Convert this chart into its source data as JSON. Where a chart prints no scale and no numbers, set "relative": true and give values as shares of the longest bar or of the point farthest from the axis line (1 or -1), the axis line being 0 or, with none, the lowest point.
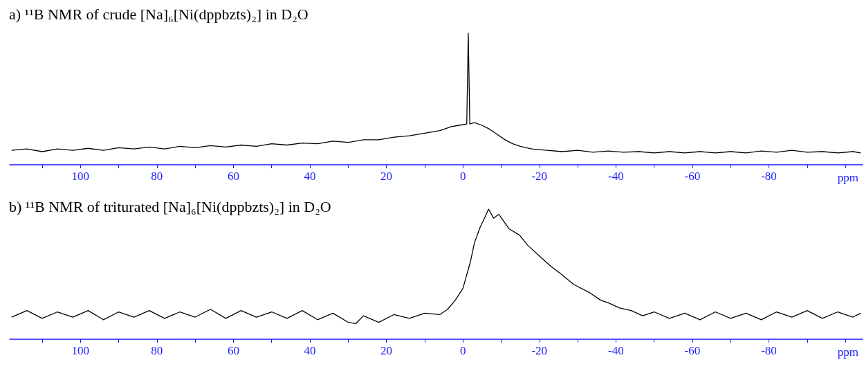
{
  "chart_data": [
    {
      "type": "line",
      "title": "a) ¹¹B NMR of crude [Na]₆[Ni(dppbzts)₂] in D₂O",
      "xlabel": "ppm",
      "relative": true,
      "xlim": [
        118.5,
        -104.5
      ],
      "xticks": [
        {
          "value": 110,
          "label": null
        },
        100,
        {
          "value": 90,
          "label": null
        },
        80,
        {
          "value": 70,
          "label": null
        },
        60,
        {
          "value": 50,
          "label": null
        },
        40,
        {
          "value": 30,
          "label": null
        },
        20,
        {
          "value": 10,
          "label": null
        },
        0,
        {
          "value": -10,
          "label": null
        },
        -20,
        {
          "value": -30,
          "label": null
        },
        -40,
        {
          "value": -50,
          "label": null
        },
        -60,
        {
          "value": -70,
          "label": null
        },
        -80,
        {
          "value": -90,
          "label": null
        },
        {
          "value": -100,
          "label": null
        }
      ],
      "series": [
        {
          "color": "#000000",
          "x": [
            118,
            114,
            110,
            106,
            102,
            98,
            94,
            90,
            86,
            82,
            78,
            74,
            70,
            66,
            62,
            58,
            54,
            50,
            46,
            42,
            38,
            34,
            30,
            26,
            22,
            18,
            14,
            10,
            6,
            3,
            1,
            -1,
            -1.4,
            -1.8,
            -3,
            -5,
            -7,
            -9,
            -11,
            -13,
            -15,
            -18,
            -22,
            -26,
            -30,
            -34,
            -38,
            -42,
            -46,
            -50,
            -54,
            -58,
            -62,
            -66,
            -70,
            -74,
            -78,
            -82,
            -86,
            -90,
            -94,
            -98,
            -102,
            -104
          ],
          "values": [
            0.11,
            0.12,
            0.1,
            0.12,
            0.11,
            0.125,
            0.11,
            0.13,
            0.12,
            0.135,
            0.12,
            0.14,
            0.13,
            0.145,
            0.135,
            0.15,
            0.14,
            0.16,
            0.15,
            0.165,
            0.16,
            0.18,
            0.17,
            0.19,
            0.19,
            0.21,
            0.22,
            0.24,
            0.26,
            0.29,
            0.3,
            0.31,
            1,
            0.31,
            0.32,
            0.3,
            0.27,
            0.23,
            0.19,
            0.16,
            0.14,
            0.12,
            0.11,
            0.1,
            0.11,
            0.095,
            0.105,
            0.095,
            0.1,
            0.09,
            0.1,
            0.09,
            0.1,
            0.09,
            0.1,
            0.09,
            0.105,
            0.095,
            0.11,
            0.095,
            0.1,
            0.09,
            0.1,
            0.09
          ]
        }
      ]
    },
    {
      "type": "line",
      "title": "b) ¹¹B NMR of triturated [Na]₆[Ni(dppbzts)₂] in D₂O",
      "xlabel": "ppm",
      "relative": true,
      "xlim": [
        118.5,
        -104.5
      ],
      "xticks": [
        {
          "value": 110,
          "label": null
        },
        100,
        {
          "value": 90,
          "label": null
        },
        80,
        {
          "value": 70,
          "label": null
        },
        60,
        {
          "value": 50,
          "label": null
        },
        40,
        {
          "value": 30,
          "label": null
        },
        20,
        {
          "value": 10,
          "label": null
        },
        0,
        {
          "value": -10,
          "label": null
        },
        -20,
        {
          "value": -30,
          "label": null
        },
        -40,
        {
          "value": -50,
          "label": null
        },
        -60,
        {
          "value": -70,
          "label": null
        },
        -80,
        {
          "value": -90,
          "label": null
        },
        {
          "value": -100,
          "label": null
        }
      ],
      "series": [
        {
          "color": "#000000",
          "x": [
            118,
            114,
            110,
            106,
            102,
            98,
            94,
            90,
            86,
            82,
            78,
            74,
            70,
            66,
            62,
            58,
            54,
            50,
            46,
            42,
            38,
            34,
            30,
            28,
            26,
            22,
            18,
            14,
            10,
            6,
            4,
            2,
            0,
            -2,
            -3,
            -4.5,
            -5.8,
            -6.7,
            -8,
            -9.4,
            -12,
            -14.8,
            -17,
            -20,
            -23,
            -25.7,
            -29,
            -33,
            -36,
            -38,
            -41,
            -44,
            -47,
            -50,
            -54,
            -58,
            -62,
            -66,
            -70,
            -74,
            -78,
            -82,
            -86,
            -90,
            -94,
            -98,
            -102,
            -104
          ],
          "values": [
            0.17,
            0.22,
            0.16,
            0.21,
            0.17,
            0.22,
            0.15,
            0.21,
            0.17,
            0.22,
            0.16,
            0.21,
            0.17,
            0.23,
            0.16,
            0.22,
            0.17,
            0.21,
            0.16,
            0.22,
            0.15,
            0.2,
            0.13,
            0.12,
            0.18,
            0.13,
            0.19,
            0.16,
            0.2,
            0.19,
            0.23,
            0.3,
            0.39,
            0.6,
            0.74,
            0.86,
            0.94,
            1,
            0.93,
            0.96,
            0.85,
            0.8,
            0.72,
            0.64,
            0.56,
            0.5,
            0.42,
            0.36,
            0.3,
            0.28,
            0.24,
            0.22,
            0.18,
            0.21,
            0.16,
            0.2,
            0.15,
            0.21,
            0.16,
            0.2,
            0.15,
            0.21,
            0.17,
            0.22,
            0.16,
            0.21,
            0.17,
            0.2
          ]
        }
      ]
    }
  ]
}
